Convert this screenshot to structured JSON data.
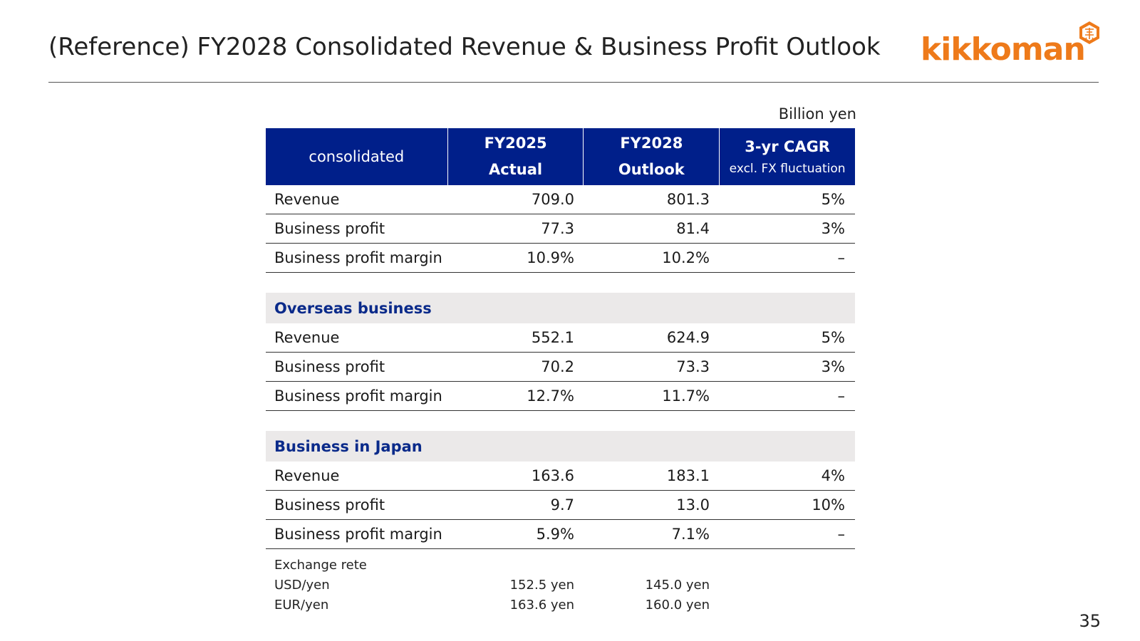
{
  "header": {
    "title": "(Reference) FY2028 Consolidated Revenue & Business Profit Outlook",
    "logo_text": "kikkoman",
    "logo_mark_icon": "kikkoman-hexagon-mark",
    "brand_color": "#ee7a1a"
  },
  "table": {
    "unit": "Billion yen",
    "header_color": "#001f8a",
    "columns": {
      "label": "consolidated",
      "fy2025_line1": "FY2025",
      "fy2025_line2": "Actual",
      "fy2028_line1": "FY2028",
      "fy2028_line2": "Outlook",
      "cagr_line1": "3-yr CAGR",
      "cagr_line2": "excl. FX fluctuation"
    },
    "consolidated": [
      {
        "label": "Revenue",
        "fy2025": "709.0",
        "fy2028": "801.3",
        "cagr": "5%"
      },
      {
        "label": "Business profit",
        "fy2025": "77.3",
        "fy2028": "81.4",
        "cagr": "3%"
      },
      {
        "label": "Business profit margin",
        "fy2025": "10.9%",
        "fy2028": "10.2%",
        "cagr": "–"
      }
    ],
    "overseas": {
      "title": "Overseas business",
      "rows": [
        {
          "label": "Revenue",
          "fy2025": "552.1",
          "fy2028": "624.9",
          "cagr": "5%"
        },
        {
          "label": "Business profit",
          "fy2025": "70.2",
          "fy2028": "73.3",
          "cagr": "3%"
        },
        {
          "label": "Business profit margin",
          "fy2025": "12.7%",
          "fy2028": "11.7%",
          "cagr": "–"
        }
      ]
    },
    "japan": {
      "title": "Business in Japan",
      "rows": [
        {
          "label": "Revenue",
          "fy2025": "163.6",
          "fy2028": "183.1",
          "cagr": "4%"
        },
        {
          "label": "Business profit",
          "fy2025": "9.7",
          "fy2028": "13.0",
          "cagr": "10%"
        },
        {
          "label": "Business profit margin",
          "fy2025": "5.9%",
          "fy2028": "7.1%",
          "cagr": "–"
        }
      ]
    }
  },
  "fx": {
    "heading": "Exchange rete",
    "rows": [
      {
        "label": "USD/yen",
        "fy2025": "152.5 yen",
        "fy2028": "145.0 yen"
      },
      {
        "label": "EUR/yen",
        "fy2025": "163.6 yen",
        "fy2028": "160.0 yen"
      }
    ]
  },
  "footer": {
    "page_number": "35"
  }
}
